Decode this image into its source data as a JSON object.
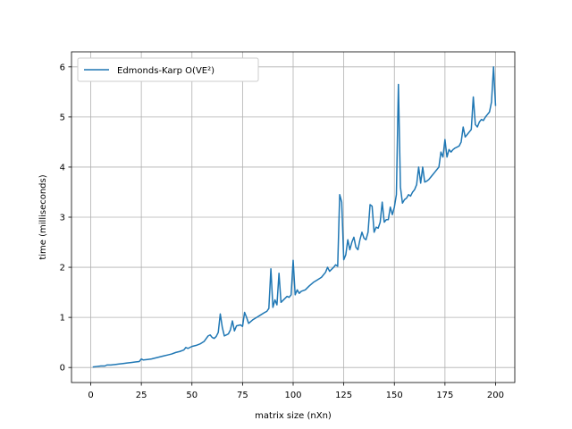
{
  "chart_data": {
    "type": "line",
    "xlabel": "matrix size (nXn)",
    "ylabel": "time (milliseconds)",
    "xlim": [
      -9.5,
      209.5
    ],
    "ylim": [
      -0.3,
      6.3
    ],
    "xticks": [
      0,
      25,
      50,
      75,
      100,
      125,
      150,
      175,
      200
    ],
    "yticks": [
      0,
      1,
      2,
      3,
      4,
      5,
      6
    ],
    "grid": true,
    "legend_position": "top-left",
    "series": [
      {
        "name": "Edmonds-Karp O(VE²)",
        "color": "#1f77b4",
        "x": [
          1,
          3,
          5,
          7,
          8,
          10,
          12,
          14,
          16,
          18,
          20,
          22,
          24,
          25,
          26,
          28,
          30,
          32,
          34,
          36,
          38,
          40,
          42,
          44,
          46,
          47,
          48,
          50,
          52,
          54,
          56,
          58,
          59,
          60,
          61,
          62,
          63,
          64,
          65,
          66,
          68,
          69,
          70,
          71,
          72,
          74,
          75,
          76,
          77,
          78,
          80,
          82,
          84,
          86,
          87,
          88,
          89,
          90,
          91,
          92,
          93,
          94,
          96,
          97,
          98,
          99,
          100,
          101,
          102,
          103,
          104,
          106,
          108,
          110,
          112,
          114,
          116,
          117,
          118,
          120,
          121,
          122,
          123,
          124,
          125,
          126,
          127,
          128,
          129,
          130,
          131,
          132,
          133,
          134,
          135,
          136,
          137,
          138,
          139,
          140,
          141,
          142,
          143,
          144,
          145,
          146,
          147,
          148,
          149,
          150,
          151,
          152,
          153,
          154,
          155,
          156,
          157,
          158,
          159,
          160,
          161,
          162,
          163,
          164,
          165,
          166,
          167,
          168,
          169,
          170,
          171,
          172,
          173,
          174,
          175,
          176,
          177,
          178,
          179,
          180,
          181,
          182,
          183,
          184,
          185,
          186,
          187,
          188,
          189,
          190,
          191,
          192,
          193,
          194,
          195,
          196,
          197,
          198,
          199,
          200
        ],
        "y": [
          0.01,
          0.02,
          0.03,
          0.03,
          0.05,
          0.05,
          0.06,
          0.07,
          0.08,
          0.09,
          0.1,
          0.11,
          0.12,
          0.17,
          0.15,
          0.16,
          0.17,
          0.19,
          0.21,
          0.23,
          0.25,
          0.27,
          0.3,
          0.32,
          0.35,
          0.4,
          0.38,
          0.42,
          0.44,
          0.47,
          0.52,
          0.63,
          0.65,
          0.6,
          0.58,
          0.62,
          0.7,
          1.07,
          0.8,
          0.63,
          0.67,
          0.75,
          0.93,
          0.73,
          0.83,
          0.85,
          0.82,
          1.1,
          1.0,
          0.88,
          0.95,
          1.0,
          1.05,
          1.1,
          1.12,
          1.18,
          1.97,
          1.2,
          1.35,
          1.25,
          1.88,
          1.3,
          1.38,
          1.42,
          1.4,
          1.45,
          2.14,
          1.45,
          1.55,
          1.48,
          1.52,
          1.55,
          1.63,
          1.7,
          1.75,
          1.8,
          1.9,
          2.0,
          1.92,
          2.0,
          2.05,
          2.02,
          3.45,
          3.3,
          2.15,
          2.25,
          2.55,
          2.35,
          2.5,
          2.6,
          2.4,
          2.35,
          2.55,
          2.7,
          2.58,
          2.55,
          2.7,
          3.25,
          3.22,
          2.7,
          2.8,
          2.78,
          2.9,
          3.3,
          2.9,
          2.95,
          2.95,
          3.2,
          3.05,
          3.2,
          3.45,
          5.65,
          3.6,
          3.28,
          3.35,
          3.38,
          3.45,
          3.42,
          3.5,
          3.55,
          3.65,
          4.0,
          3.68,
          4.0,
          3.7,
          3.72,
          3.75,
          3.8,
          3.85,
          3.9,
          3.95,
          4.0,
          4.3,
          4.2,
          4.55,
          4.2,
          4.35,
          4.3,
          4.35,
          4.38,
          4.4,
          4.42,
          4.5,
          4.8,
          4.6,
          4.65,
          4.7,
          4.75,
          5.4,
          4.85,
          4.8,
          4.9,
          4.95,
          4.93,
          5.0,
          5.05,
          5.1,
          5.3,
          6.0,
          5.22
        ]
      }
    ]
  }
}
